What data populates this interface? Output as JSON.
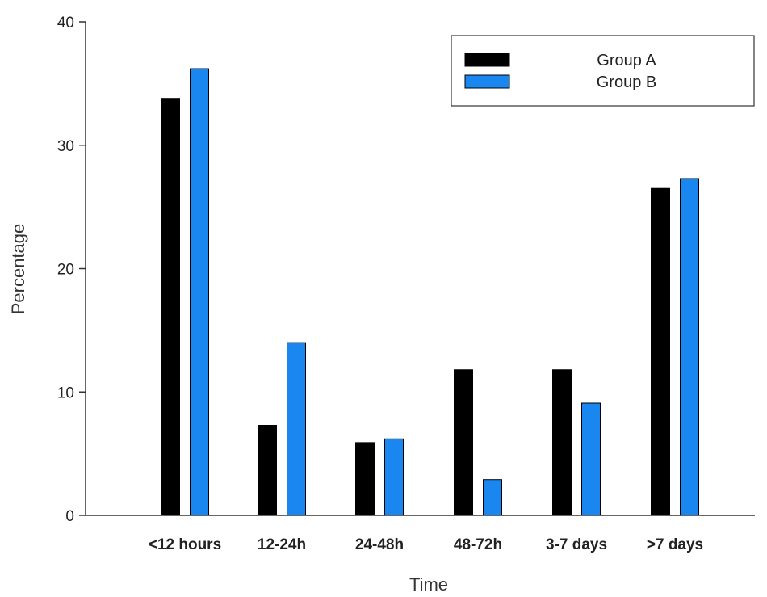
{
  "chart_data": {
    "type": "bar",
    "xlabel": "Time",
    "ylabel": "Percentage",
    "ylim": [
      0,
      40
    ],
    "yticks": [
      0,
      10,
      20,
      30,
      40
    ],
    "categories": [
      "<12 hours",
      "12-24h",
      "24-48h",
      "48-72h",
      "3-7 days",
      ">7 days"
    ],
    "series": [
      {
        "name": "Group A",
        "color": "#000000",
        "values": [
          33.8,
          7.3,
          5.9,
          11.8,
          11.8,
          26.5
        ]
      },
      {
        "name": "Group B",
        "color": "#1a86f0",
        "values": [
          36.2,
          14.0,
          6.2,
          2.9,
          9.1,
          27.3
        ]
      }
    ],
    "legend": {
      "position": "top-right"
    },
    "grid": false
  }
}
